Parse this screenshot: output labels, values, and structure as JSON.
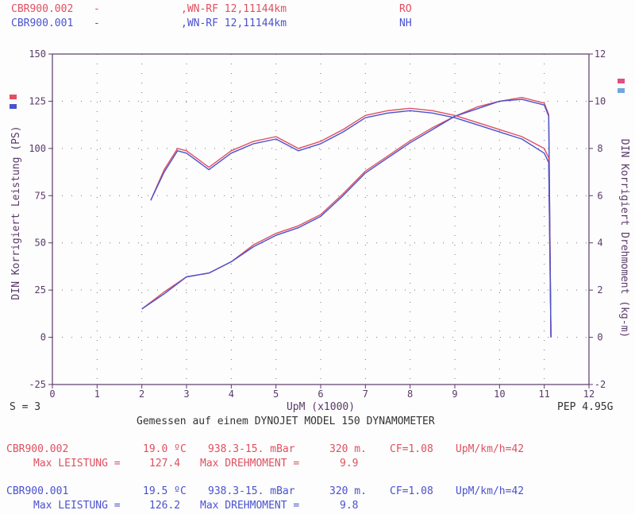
{
  "header": {
    "rows": [
      {
        "file": "CBR900.002",
        "dash": "-",
        "desc": ",WN-RF 12,11144km",
        "code": "RO",
        "color": "#e05060"
      },
      {
        "file": "CBR900.001",
        "dash": "-",
        "desc": ",WN-RF 12,11144km",
        "code": "NH",
        "color": "#4a52cf"
      }
    ]
  },
  "chart_data": {
    "type": "line",
    "xlabel": "UpM (x1000)",
    "ylabel_left": "DIN Korrigiert Leistung (PS)",
    "ylabel_right": "DIN Korrigiert Drehmoment (kg-m)",
    "xlim": [
      0,
      12
    ],
    "ylim_left": [
      -25,
      150
    ],
    "ylim_right": [
      -2,
      12
    ],
    "x_ticks": [
      "0",
      "1",
      "2",
      "3",
      "4",
      "5",
      "6",
      "7",
      "8",
      "9",
      "10",
      "11",
      "12"
    ],
    "y_ticks_left": [
      "-25",
      "0",
      "25",
      "50",
      "75",
      "100",
      "125",
      "150"
    ],
    "y_ticks_right": [
      "-2",
      "0",
      "2",
      "4",
      "6",
      "8",
      "10",
      "12"
    ],
    "grid": true,
    "series": [
      {
        "name": "CBR900.002",
        "quantity": "Leistung",
        "axis": "left",
        "color": "#e05060",
        "x": [
          2.0,
          2.5,
          3.0,
          3.5,
          4.0,
          4.5,
          5.0,
          5.5,
          6.0,
          6.5,
          7.0,
          7.5,
          8.0,
          8.5,
          9.0,
          9.5,
          10.0,
          10.5,
          11.0,
          11.1
        ],
        "y": [
          15,
          24,
          32,
          34,
          40,
          49,
          55,
          59,
          65,
          76,
          88,
          96,
          104,
          111,
          117,
          122,
          125,
          127,
          124,
          118
        ]
      },
      {
        "name": "CBR900.001",
        "quantity": "Leistung",
        "axis": "left",
        "color": "#4a52cf",
        "x": [
          2.0,
          2.5,
          3.0,
          3.5,
          4.0,
          4.5,
          5.0,
          5.5,
          6.0,
          6.5,
          7.0,
          7.5,
          8.0,
          8.5,
          9.0,
          9.5,
          10.0,
          10.5,
          11.0,
          11.1
        ],
        "y": [
          15,
          23,
          32,
          34,
          40,
          48,
          54,
          58,
          64,
          75,
          87,
          95,
          103,
          110,
          117,
          121,
          125,
          126,
          123,
          117
        ]
      },
      {
        "name": "CBR900.002",
        "quantity": "Drehmoment",
        "axis": "right",
        "color": "#e05060",
        "x": [
          2.2,
          2.5,
          2.8,
          3.0,
          3.5,
          4.0,
          4.5,
          5.0,
          5.5,
          6.0,
          6.5,
          7.0,
          7.5,
          8.0,
          8.5,
          9.0,
          9.5,
          10.0,
          10.5,
          11.0,
          11.1
        ],
        "y": [
          5.8,
          7.1,
          8.0,
          7.9,
          7.2,
          7.9,
          8.3,
          8.5,
          8.0,
          8.3,
          8.8,
          9.4,
          9.6,
          9.7,
          9.6,
          9.4,
          9.1,
          8.8,
          8.5,
          8.0,
          7.6
        ]
      },
      {
        "name": "CBR900.001",
        "quantity": "Drehmoment",
        "axis": "right",
        "color": "#4a52cf",
        "x": [
          2.2,
          2.5,
          2.8,
          3.0,
          3.5,
          4.0,
          4.5,
          5.0,
          5.5,
          6.0,
          6.5,
          7.0,
          7.5,
          8.0,
          8.5,
          9.0,
          9.5,
          10.0,
          10.5,
          11.0,
          11.1
        ],
        "y": [
          5.8,
          7.0,
          7.9,
          7.8,
          7.1,
          7.8,
          8.2,
          8.4,
          7.9,
          8.2,
          8.7,
          9.3,
          9.5,
          9.6,
          9.5,
          9.3,
          9.0,
          8.7,
          8.4,
          7.8,
          7.4
        ]
      }
    ]
  },
  "footer_mid": {
    "s_label": "S = 3",
    "measured": "Gemessen auf einem DYNOJET MODEL 150 DYNAMOMETER",
    "pep": "PEP 4.95G"
  },
  "runs": [
    {
      "file": "CBR900.002",
      "temp": "19.0 ºC",
      "pressure": "938.3-15. mBar",
      "alt": "320 m.",
      "cf": "CF=1.08",
      "upm": "UpM/km/h=42",
      "max_leistung_label": "Max LEISTUNG =",
      "max_leistung": "127.4",
      "max_dreh_label": "Max DREHMOMENT =",
      "max_dreh": "9.9",
      "color": "#e05060"
    },
    {
      "file": "CBR900.001",
      "temp": "19.5 ºC",
      "pressure": "938.3-15. mBar",
      "alt": "320 m.",
      "cf": "CF=1.08",
      "upm": "UpM/km/h=42",
      "max_leistung_label": "Max LEISTUNG =",
      "max_leistung": "126.2",
      "max_dreh_label": "Max DREHMOMENT =",
      "max_dreh": "9.8",
      "color": "#4a52cf"
    }
  ]
}
